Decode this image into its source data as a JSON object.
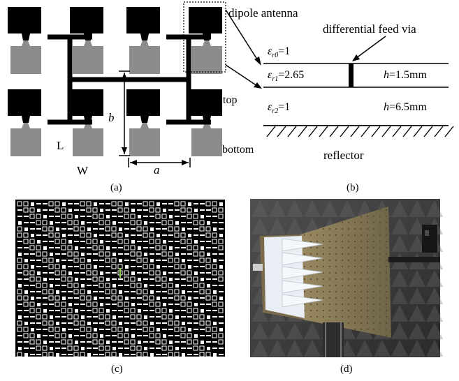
{
  "panel_a": {
    "caption": "(a)",
    "labels": {
      "length": "L",
      "width": "W",
      "b": "b",
      "a": "a"
    }
  },
  "panel_b": {
    "caption": "(b)",
    "dipole_label": "dipole antenna",
    "feed_label": "differential feed via",
    "layers": [
      {
        "eps_symbol": "ε",
        "eps_sub": "r0",
        "eps_value": "=1"
      },
      {
        "eps_symbol": "ε",
        "eps_sub": "r1",
        "eps_value": "=2.65",
        "h_symbol": "h",
        "h_value": "=1.5mm"
      },
      {
        "eps_symbol": "ε",
        "eps_sub": "r2",
        "eps_value": "=1",
        "h_symbol": "h",
        "h_value": "=6.5mm"
      }
    ],
    "top_label": "top",
    "bottom_label": "bottom",
    "reflector_label": "reflector"
  },
  "panel_c": {
    "caption": "(c)"
  },
  "panel_d": {
    "caption": "(d)"
  },
  "colors": {
    "metal": "#000000",
    "ground": "#8c8c8c",
    "photo_bg": "#3a3a3a"
  }
}
